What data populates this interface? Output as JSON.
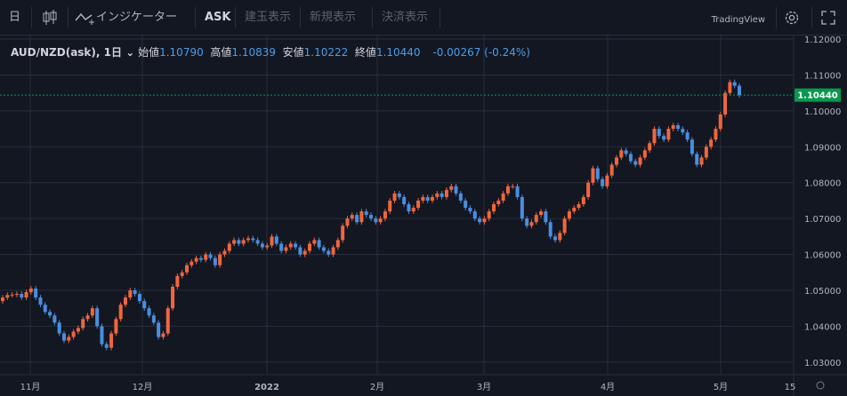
{
  "toolbar": {
    "timeframe": "日",
    "indicators": "インジケーター",
    "ask": "ASK",
    "btn_position": "建玉表示",
    "btn_new": "新規表示",
    "btn_settle": "決済表示",
    "brand": "TradingView"
  },
  "legend": {
    "symbol": "AUD/NZD(ask), 1日",
    "open_label": "始値",
    "open": "1.10790",
    "high_label": "高値",
    "high": "1.10839",
    "low_label": "安値",
    "low": "1.10222",
    "close_label": "終値",
    "close": "1.10440",
    "change": "-0.00267 (-0.24%)"
  },
  "colors": {
    "up": "#f0663e",
    "down": "#4a8ee0",
    "bg": "#131722",
    "grid": "#2a2e39",
    "last_price": "#089950"
  },
  "chart_data": {
    "type": "candlestick",
    "y_ticks": [
      "1.12000",
      "1.11000",
      "1.10000",
      "1.09000",
      "1.08000",
      "1.07000",
      "1.06000",
      "1.05000",
      "1.04000",
      "1.03000"
    ],
    "ylim": [
      1.0265,
      1.121
    ],
    "x_labels": [
      "11月",
      "12月",
      "2022",
      "2月",
      "3月",
      "4月",
      "5月",
      "15"
    ],
    "last_price": "1.10440",
    "closes": [
      1.048,
      1.0487,
      1.0488,
      1.049,
      1.048,
      1.0495,
      1.0505,
      1.048,
      1.046,
      1.044,
      1.043,
      1.041,
      1.038,
      1.036,
      1.037,
      1.0385,
      1.0395,
      1.042,
      1.043,
      1.045,
      1.04,
      1.035,
      1.034,
      1.038,
      1.042,
      1.046,
      1.048,
      1.05,
      1.049,
      1.047,
      1.045,
      1.043,
      1.041,
      1.037,
      1.038,
      1.045,
      1.051,
      1.054,
      1.055,
      1.057,
      1.058,
      1.059,
      1.0585,
      1.06,
      1.059,
      1.057,
      1.06,
      1.061,
      1.063,
      1.064,
      1.063,
      1.064,
      1.0645,
      1.064,
      1.063,
      1.062,
      1.0625,
      1.065,
      1.063,
      1.061,
      1.062,
      1.063,
      1.062,
      1.06,
      1.061,
      1.063,
      1.064,
      1.062,
      1.061,
      1.06,
      1.062,
      1.064,
      1.068,
      1.07,
      1.071,
      1.069,
      1.072,
      1.071,
      1.07,
      1.069,
      1.07,
      1.072,
      1.075,
      1.077,
      1.076,
      1.074,
      1.072,
      1.073,
      1.075,
      1.076,
      1.075,
      1.076,
      1.077,
      1.076,
      1.078,
      1.079,
      1.077,
      1.075,
      1.073,
      1.072,
      1.07,
      1.069,
      1.07,
      1.072,
      1.074,
      1.075,
      1.077,
      1.079,
      1.079,
      1.076,
      1.07,
      1.068,
      1.069,
      1.071,
      1.072,
      1.069,
      1.065,
      1.064,
      1.066,
      1.07,
      1.072,
      1.073,
      1.074,
      1.076,
      1.08,
      1.084,
      1.081,
      1.079,
      1.082,
      1.085,
      1.087,
      1.089,
      1.088,
      1.086,
      1.085,
      1.087,
      1.089,
      1.091,
      1.095,
      1.093,
      1.092,
      1.095,
      1.096,
      1.095,
      1.094,
      1.092,
      1.088,
      1.085,
      1.087,
      1.09,
      1.092,
      1.095,
      1.099,
      1.105,
      1.108,
      1.107,
      1.1044
    ]
  }
}
